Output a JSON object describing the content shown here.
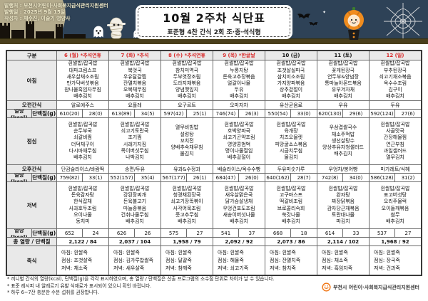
{
  "banner": {
    "publisher_line": "발행처 : 부천시어린이·사회복지급식관리지원센터",
    "date_line": "발행일 : 2025년 9월 15일",
    "author_line": "작성자 : 채수진, 이슬기 영양사",
    "title": "10월 2주차 식단표",
    "subtitle": "표준형 4찬 간식 2회 조·중·석식형"
  },
  "colors": {
    "banner_bg": "#2e4257",
    "ground": "#4a3f1c",
    "holiday_red": "#d92b2b",
    "header_gray": "#e9e9e9",
    "logo_orange": "#f07818"
  },
  "table": {
    "corner_label": "구분",
    "row_labels": {
      "breakfast": "아침",
      "am_snack": "오전간식",
      "energy": "열량(kcal)",
      "protein": "단백질(g)",
      "lunch": "점심",
      "pm_snack": "오후간식",
      "dinner": "저녁",
      "total": "총 열량 / 단백질",
      "porridge": "죽식"
    },
    "days": [
      {
        "header": "6 (월) *추석연휴",
        "holiday": true,
        "breakfast": [
          "흰쌀밥/잡곡밥",
          "대파크림스프",
          "새우살채소조림",
          "만가닥버섯볶음",
          "참나물흑임자무침",
          "배추김치"
        ],
        "am_snack": "알로에주스",
        "energy1": [
          "610(20)",
          "28(0)"
        ],
        "lunch": [
          "흰쌀밥/잡곡밥",
          "순두부국",
          "쇠갈비찜",
          "더덕채구이",
          "다시마채무침",
          "배추김치"
        ],
        "pm_snack": "단감슬라이스/바람떡",
        "energy2": [
          "759(82)",
          "33(1)"
        ],
        "dinner": [
          "흰쌀밥/잡곡밥",
          "돈육감자탕",
          "한식잡채",
          "사과호두조림",
          "오이나물",
          "동치미"
        ],
        "energy3": [
          "652",
          "24"
        ],
        "total": "2,122 / 84",
        "porridge": [
          "아침: 흰쌀죽",
          "점심: 조갯살죽",
          "저녁: 채소죽"
        ]
      },
      {
        "header": "7 (화) *추석",
        "holiday": true,
        "breakfast": [
          "흰쌀밥/잡곡밥",
          "북엇국",
          "우유달걀찜",
          "잔멸치볶음",
          "오복채무침",
          "배추김치"
        ],
        "am_snack": "요플레",
        "energy1": [
          "613(89)",
          "34(5)"
        ],
        "lunch": [
          "흰쌀밥/잡곡밥",
          "쇠고기토란국",
          "조기찜",
          "시래기지짐",
          "목이버섯무침",
          "나박김치"
        ],
        "pm_snack": "송편/두유",
        "energy2": [
          "552(157)",
          "35(4)"
        ],
        "dinner": [
          "흰쌀밥/잡곡밥",
          "강된장찌개",
          "돈육불고기",
          "마늘종볶음",
          "건취나물무침",
          "배추김치"
        ],
        "energy3": [
          "626",
          "26"
        ],
        "total": "2,037 / 104",
        "porridge": [
          "아침: 흰쌀죽",
          "점심: 김가루찹쌀죽",
          "저녁: 새우살죽"
        ]
      },
      {
        "header": "8 (수) *추석연휴",
        "holiday": true,
        "breakfast": [
          "흰쌀밥/잡곡밥",
          "참치미역국",
          "두부엿장조림",
          "도라지채볶음",
          "양념깻잎지",
          "배추김치"
        ],
        "am_snack": "요구르트",
        "energy1": [
          "597(42)",
          "25(1)"
        ],
        "lunch": [
          "열무비빔밥",
          "설렁탕",
          "꼬치전",
          "양배추숙채무침",
          "물김치"
        ],
        "pm_snack": "유과&수정과",
        "energy2": [
          "567(177)",
          "26(1)"
        ],
        "dinner": [
          "흰쌀밥/잡곡밥",
          "청경채된장국",
          "쇠고기장똑볶이",
          "사각어묵조림",
          "풋고추무침",
          "배추김치"
        ],
        "energy3": [
          "575",
          "27"
        ],
        "total": "1,958 / 79",
        "porridge": [
          "아침: 흰쌀죽",
          "점심: 달걀죽",
          "저녁: 참깨죽"
        ]
      },
      {
        "header": "9 (목) *한글날",
        "holiday": true,
        "breakfast": [
          "흰쌀밥/잡곡밥",
          "누룽지탕",
          "돈육고추장볶음",
          "얼갈이나물",
          "두유",
          "배추김치"
        ],
        "am_snack": "오미자차",
        "energy1": [
          "746(74)",
          "26(3)"
        ],
        "lunch": [
          "흰쌀밥/잡곡밥",
          "호박양파국",
          "쇠고기곤약조림",
          "영양콩범벅",
          "명이나물절임",
          "배추겉절이"
        ],
        "pm_snack": "배슬라이스/옥수수빵",
        "energy2": [
          "684(47)",
          "26(0)"
        ],
        "dinner": [
          "흰쌀밥/잡곡밥",
          "새우살맑은국",
          "닭가슴살냉채",
          "우엉건포도조림",
          "새송이버섯나물",
          "배추김치"
        ],
        "energy3": [
          "541",
          "37"
        ],
        "total": "2,092 / 92",
        "porridge": [
          "아침: 흰쌀죽",
          "점심: 해물죽",
          "저녁: 쇠고기죽"
        ]
      },
      {
        "header": "10 (금)",
        "holiday": false,
        "breakfast": [
          "흰쌀밥/잡곡밥",
          "조갯살실파국",
          "삼치미소조림",
          "가지양파볶음",
          "상추겉절이",
          "배추김치"
        ],
        "am_snack": "유산균음료",
        "energy1": [
          "550(54)",
          "33(0)"
        ],
        "lunch": [
          "흰쌀밥/잡곡밥",
          "육개장",
          "치즈오믈렛",
          "피망굴소스볶음",
          "시금치무침",
          "물김치"
        ],
        "pm_snack": "두유미숫가루",
        "energy2": [
          "640(162)",
          "28(7)"
        ],
        "dinner": [
          "흰쌀밥/잡곡밥",
          "고구마스프",
          "떡갈비조림",
          "브로콜리숙회",
          "쑥갓나물",
          "배추김치"
        ],
        "energy3": [
          "668",
          "18"
        ],
        "total": "2,073 / 86",
        "porridge": [
          "아침: 흰쌀죽",
          "점심: 잔멸치죽",
          "저녁: 참치죽"
        ]
      },
      {
        "header": "11 (토)",
        "holiday": false,
        "breakfast": [
          "흰쌀밥/잡곡밥",
          "꽃게된장국",
          "연두부&양념장",
          "통마늘아몬드볶음",
          "유부겨자채",
          "배추김치"
        ],
        "am_snack": "우유",
        "energy1": [
          "620(130)",
          "29(6)"
        ],
        "lunch": [
          "우삼겹쌀국수",
          "채소주먹밥",
          "생선살탕수",
          "양상추유자청샐러드",
          "배추김치"
        ],
        "pm_snack": "우엉차/붕어빵",
        "energy2": [
          "742(8)",
          "34(0)"
        ],
        "dinner": [
          "흰쌀밥/잡곡밥",
          "완자탕",
          "짜장닭볶음",
          "감자당근채볶음",
          "토란대나물",
          "파김치"
        ],
        "energy3": [
          "614",
          "33"
        ],
        "total": "2,114 / 102",
        "porridge": [
          "아침: 흰쌀죽",
          "점심: 채소죽",
          "저녁: 흑임자죽"
        ]
      },
      {
        "header": "12 (일)",
        "holiday": true,
        "breakfast": [
          "흰쌀밥/잡곡밥",
          "부추된장국",
          "쇠고기채소볶음",
          "옥수수조림",
          "김구이",
          "배추김치"
        ],
        "am_snack": "두유",
        "energy1": [
          "592(124)",
          "27(6)"
        ],
        "lunch": [
          "흰쌀밥/잡곡밥",
          "사골맛국",
          "간장해물찜",
          "연근부침",
          "과일샐러드",
          "열무김치"
        ],
        "pm_snack": "마가레트/식혜",
        "energy2": [
          "586(128)",
          "31(2)"
        ],
        "dinner": [
          "흰쌀밥/잡곡밥",
          "표고버섯탕",
          "오리주물럭",
          "오이들깨볶음",
          "쌈무",
          "배추김치"
        ],
        "energy3": [
          "537",
          "27"
        ],
        "total": "1,968 / 92",
        "porridge": [
          "아침: 흰쌀죽",
          "점심: 장국죽",
          "저녁: 건과죽"
        ]
      }
    ]
  },
  "footnotes": [
    "* 끼니별 간식의 열량(kcal), 단백질(g)을 각각 표시하였으며, 총 열량 / 단백질은 산출 프로그램의 소수점 단위로 차이가 날 수 있습니다.",
    "* 표준 레시피 내 알레르기 유발 식재료가 표시되어 있으니 확인 바랍니다.",
    "* 하루 6~7잔 충분한 수분 섭취를 권장합니다."
  ],
  "logo": {
    "text": "부천시 어린이·사회복지급식관리지원센터"
  }
}
